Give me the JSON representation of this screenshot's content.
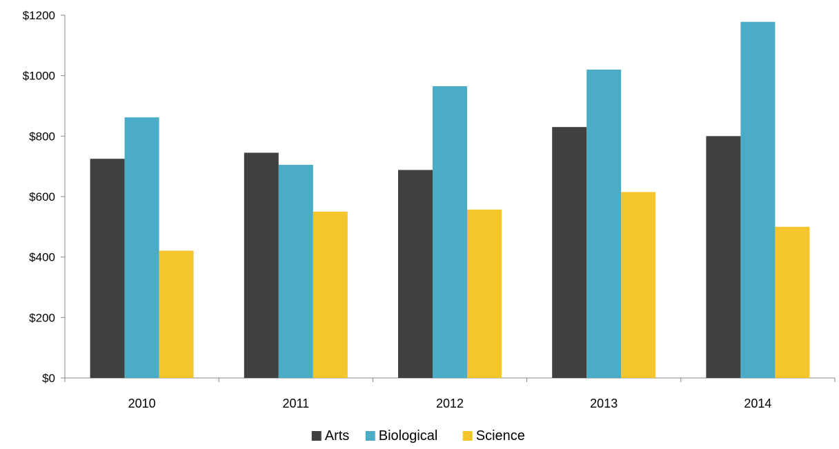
{
  "chart_data": {
    "type": "bar",
    "title": "",
    "xlabel": "",
    "ylabel": "",
    "categories": [
      "2010",
      "2011",
      "2012",
      "2013",
      "2014"
    ],
    "series": [
      {
        "name": "Arts",
        "color": "#404040",
        "values": [
          725,
          745,
          688,
          830,
          800
        ]
      },
      {
        "name": "Biological",
        "color": "#4BACC6",
        "values": [
          862,
          705,
          965,
          1020,
          1178
        ]
      },
      {
        "name": "Science",
        "color": "#F4C62C",
        "values": [
          421,
          550,
          557,
          615,
          500
        ]
      }
    ],
    "ylim": [
      0,
      1200
    ],
    "yticks": [
      0,
      200,
      400,
      600,
      800,
      1000,
      1200
    ],
    "ytick_labels": [
      "$0",
      "$200",
      "$400",
      "$600",
      "$800",
      "$1000",
      "$1200"
    ],
    "grid": false,
    "legend_position": "bottom"
  }
}
